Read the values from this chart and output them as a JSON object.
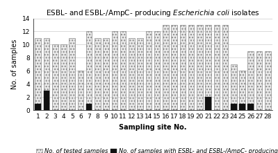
{
  "title": "ESBL- and ESBL-/AmpC- producing Escherichia coli isolates",
  "xlabel": "Sampling site No.",
  "ylabel": "No. of samples",
  "sites": [
    1,
    2,
    3,
    4,
    5,
    6,
    7,
    8,
    9,
    10,
    11,
    12,
    13,
    14,
    15,
    16,
    17,
    18,
    19,
    20,
    21,
    22,
    23,
    24,
    25,
    26,
    27,
    28
  ],
  "tested": [
    11,
    11,
    10,
    10,
    11,
    6,
    12,
    11,
    11,
    12,
    12,
    11,
    11,
    12,
    12,
    13,
    13,
    13,
    13,
    13,
    13,
    13,
    13,
    7,
    6,
    9,
    9,
    9
  ],
  "positive": [
    1,
    3,
    0,
    0,
    0,
    0,
    1,
    0,
    0,
    0,
    0,
    0,
    0,
    0,
    0,
    0,
    0,
    0,
    0,
    0,
    2,
    0,
    0,
    1,
    1,
    1,
    0,
    0
  ],
  "ylim": [
    0,
    14
  ],
  "yticks": [
    0,
    2,
    4,
    6,
    8,
    10,
    12,
    14
  ],
  "tested_color": "#e8e8e8",
  "tested_hatch": "....",
  "tested_edgecolor": "#888888",
  "positive_color": "#111111",
  "background_color": "#ffffff",
  "legend_tested": "No. of tested samples",
  "legend_positive": "No. of samples with ESBL- and ESBL-/AmpC- producing E. coli isolates",
  "title_fontsize": 7.5,
  "axis_label_fontsize": 7,
  "tick_fontsize": 6.5,
  "legend_fontsize": 6
}
